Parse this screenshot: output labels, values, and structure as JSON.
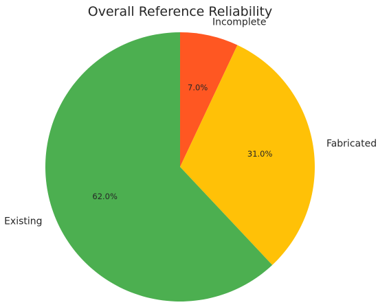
{
  "chart_data": {
    "type": "pie",
    "title": "Overall Reference Reliability",
    "slices": [
      {
        "label": "Incomplete",
        "value": 7.0,
        "pct_label": "7.0%",
        "color": "#FF5722"
      },
      {
        "label": "Fabricated",
        "value": 31.0,
        "pct_label": "31.0%",
        "color": "#FFC107"
      },
      {
        "label": "Existing",
        "value": 62.0,
        "pct_label": "62.0%",
        "color": "#4CAF50"
      }
    ],
    "start_angle_deg": 90,
    "direction": "clockwise",
    "legend": "none"
  }
}
